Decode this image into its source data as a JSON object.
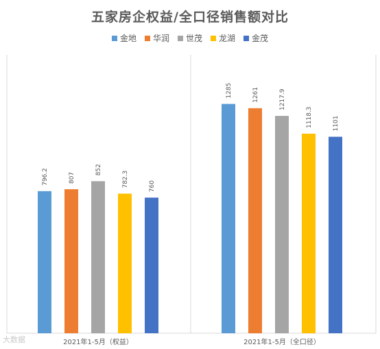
{
  "chart_data": {
    "type": "bar",
    "title": "五家房企权益/全口径销售额对比",
    "categories": [
      "2021年1-5月（权益）",
      "2021年1-5月（全口径）"
    ],
    "series": [
      {
        "name": "金地",
        "color": "#5B9BD5",
        "values": [
          796.2,
          1285
        ],
        "labels": [
          "796.2",
          "1285"
        ]
      },
      {
        "name": "华润",
        "color": "#ED7D31",
        "values": [
          807,
          1261
        ],
        "labels": [
          "807",
          "1261"
        ]
      },
      {
        "name": "世茂",
        "color": "#A5A5A5",
        "values": [
          852,
          1217.9
        ],
        "labels": [
          "852",
          "1217.9"
        ]
      },
      {
        "name": "龙湖",
        "color": "#FFC000",
        "values": [
          782.3,
          1118.3
        ],
        "labels": [
          "782.3",
          "1118.3"
        ]
      },
      {
        "name": "金茂",
        "color": "#4472C4",
        "values": [
          760,
          1101
        ],
        "labels": [
          "760",
          "1101"
        ]
      }
    ],
    "ylim": [
      0,
      1560
    ],
    "legend_position": "top-center",
    "grid": false,
    "xlabel": "",
    "ylabel": ""
  },
  "watermark": "大数据"
}
